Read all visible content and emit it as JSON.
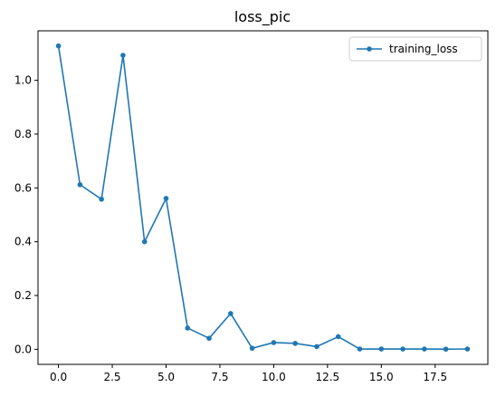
{
  "chart_data": {
    "type": "line",
    "title": "loss_pic",
    "xlabel": "",
    "ylabel": "",
    "xlim": [
      -0.95,
      19.95
    ],
    "ylim": [
      -0.056,
      1.184
    ],
    "x_ticks": [
      0.0,
      2.5,
      5.0,
      7.5,
      10.0,
      12.5,
      15.0,
      17.5
    ],
    "x_tick_labels": [
      "0.0",
      "2.5",
      "5.0",
      "7.5",
      "10.0",
      "12.5",
      "15.0",
      "17.5"
    ],
    "y_ticks": [
      0.0,
      0.2,
      0.4,
      0.6,
      0.8,
      1.0
    ],
    "y_tick_labels": [
      "0.0",
      "0.2",
      "0.4",
      "0.6",
      "0.8",
      "1.0"
    ],
    "grid": false,
    "legend_position": "upper right",
    "series": [
      {
        "name": "training_loss",
        "color": "#1f77b4",
        "marker": "dot",
        "x": [
          0,
          1,
          2,
          3,
          4,
          5,
          6,
          7,
          8,
          9,
          10,
          11,
          12,
          13,
          14,
          15,
          16,
          17,
          18,
          19
        ],
        "y": [
          1.128,
          0.612,
          0.558,
          1.093,
          0.4,
          0.561,
          0.079,
          0.041,
          0.133,
          0.004,
          0.025,
          0.022,
          0.01,
          0.047,
          0.001,
          0.001,
          0.001,
          0.001,
          0.0005,
          0.001
        ]
      }
    ]
  }
}
